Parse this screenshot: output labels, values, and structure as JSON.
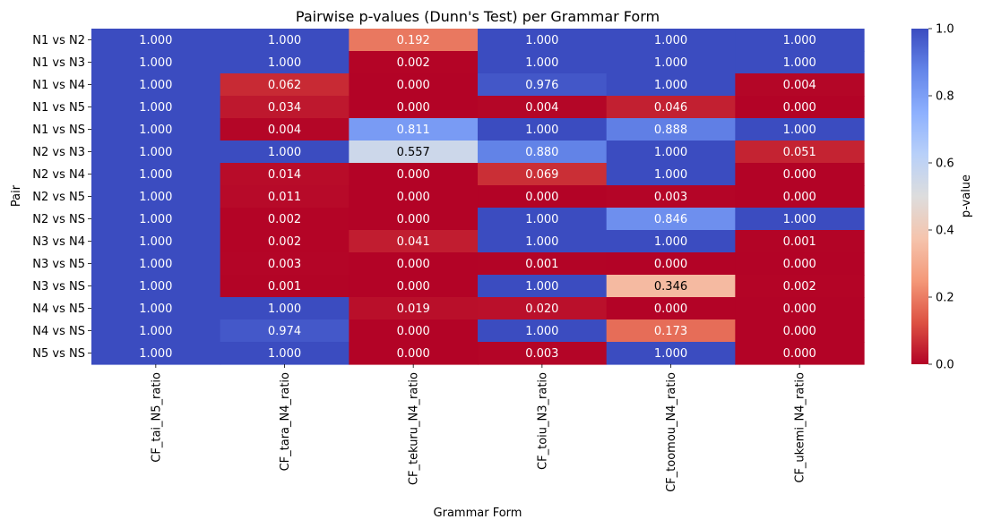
{
  "chart_data": {
    "type": "heatmap",
    "title": "Pairwise p-values (Dunn's Test) per Grammar Form",
    "xlabel": "Grammar Form",
    "ylabel": "Pair",
    "colorbar": {
      "label": "p-value",
      "range": [
        0.0,
        1.0
      ],
      "ticks": [
        "0.0",
        "0.2",
        "0.4",
        "0.6",
        "0.8",
        "1.0"
      ],
      "colormap": "coolwarm_r"
    },
    "columns": [
      "CF_tai_N5_ratio",
      "CF_tara_N4_ratio",
      "CF_tekuru_N4_ratio",
      "CF_toiu_N3_ratio",
      "CF_toomou_N4_ratio",
      "CF_ukemi_N4_ratio"
    ],
    "rows": [
      "N1 vs N2",
      "N1 vs N3",
      "N1 vs N4",
      "N1 vs N5",
      "N1 vs NS",
      "N2 vs N3",
      "N2 vs N4",
      "N2 vs N5",
      "N2 vs NS",
      "N3 vs N4",
      "N3 vs N5",
      "N3 vs NS",
      "N4 vs N5",
      "N4 vs NS",
      "N5 vs NS"
    ],
    "values": [
      [
        1.0,
        1.0,
        0.192,
        1.0,
        1.0,
        1.0
      ],
      [
        1.0,
        1.0,
        0.002,
        1.0,
        1.0,
        1.0
      ],
      [
        1.0,
        0.062,
        0.0,
        0.976,
        1.0,
        0.004
      ],
      [
        1.0,
        0.034,
        0.0,
        0.004,
        0.046,
        0.0
      ],
      [
        1.0,
        0.004,
        0.811,
        1.0,
        0.888,
        1.0
      ],
      [
        1.0,
        1.0,
        0.557,
        0.88,
        1.0,
        0.051
      ],
      [
        1.0,
        0.014,
        0.0,
        0.069,
        1.0,
        0.0
      ],
      [
        1.0,
        0.011,
        0.0,
        0.0,
        0.003,
        0.0
      ],
      [
        1.0,
        0.002,
        0.0,
        1.0,
        0.846,
        1.0
      ],
      [
        1.0,
        0.002,
        0.041,
        1.0,
        1.0,
        0.001
      ],
      [
        1.0,
        0.003,
        0.0,
        0.001,
        0.0,
        0.0
      ],
      [
        1.0,
        0.001,
        0.0,
        1.0,
        0.346,
        0.002
      ],
      [
        1.0,
        1.0,
        0.019,
        0.02,
        0.0,
        0.0
      ],
      [
        1.0,
        0.974,
        0.0,
        1.0,
        0.173,
        0.0
      ],
      [
        1.0,
        1.0,
        0.0,
        0.003,
        1.0,
        0.0
      ]
    ]
  }
}
